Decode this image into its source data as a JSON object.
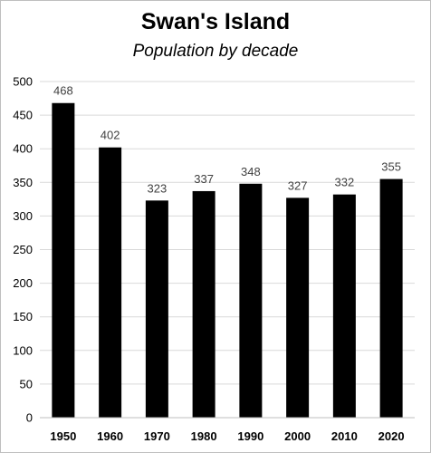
{
  "chart_data": {
    "type": "bar",
    "title": "Swan's Island",
    "subtitle": "Population by decade",
    "categories": [
      "1950",
      "1960",
      "1970",
      "1980",
      "1990",
      "2000",
      "2010",
      "2020"
    ],
    "values": [
      468,
      402,
      323,
      337,
      348,
      327,
      332,
      355
    ],
    "data_labels": [
      "468",
      "402",
      "323",
      "337",
      "348",
      "327",
      "332",
      "355"
    ],
    "y_ticks": [
      0,
      50,
      100,
      150,
      200,
      250,
      300,
      350,
      400,
      450,
      500
    ],
    "ylim": [
      0,
      500
    ],
    "xlabel": "",
    "ylabel": "",
    "grid": true,
    "legend": "none",
    "colors": {
      "bar": "#000000",
      "grid": "#d9d9d9",
      "data_label": "#404040"
    }
  }
}
